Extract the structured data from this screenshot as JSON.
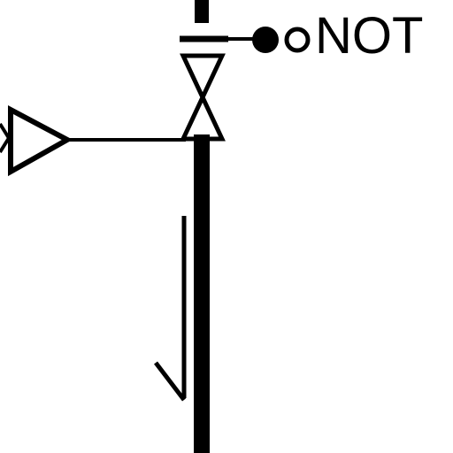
{
  "diagram": {
    "not_label": "NOT",
    "line_color": "#000000",
    "background_color": "#ffffff"
  }
}
